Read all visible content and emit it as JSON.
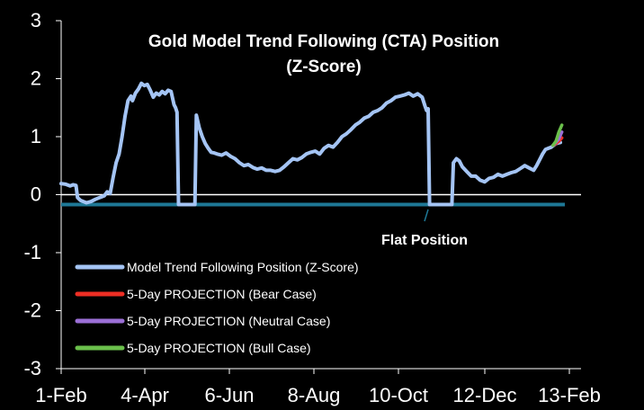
{
  "chart_data": {
    "type": "line",
    "title_lines": [
      "Gold Model Trend Following (CTA) Position",
      "(Z-Score)"
    ],
    "ylim": [
      -3,
      3
    ],
    "y_ticks": [
      3,
      2,
      1,
      0,
      -1,
      -2,
      -3
    ],
    "x_tick_labels": [
      "1-Feb",
      "4-Apr",
      "6-Jun",
      "8-Aug",
      "10-Oct",
      "12-Dec",
      "13-Feb"
    ],
    "x_range_days": [
      0,
      378
    ],
    "zero_line": true,
    "flat_position": {
      "value": -0.17,
      "label": "Flat Position",
      "color": "#1e7896"
    },
    "legend_placement": "bottom-left",
    "series": [
      {
        "name": "Model Trend Following Position (Z-Score)",
        "color": "#a4c4f4",
        "points": [
          [
            0,
            0.19
          ],
          [
            3,
            0.18
          ],
          [
            6,
            0.15
          ],
          [
            8,
            0.17
          ],
          [
            10,
            0.16
          ],
          [
            11,
            -0.05
          ],
          [
            13,
            -0.1
          ],
          [
            15,
            -0.12
          ],
          [
            17,
            -0.14
          ],
          [
            20,
            -0.12
          ],
          [
            23,
            -0.08
          ],
          [
            26,
            -0.05
          ],
          [
            29,
            -0.02
          ],
          [
            31,
            0.05
          ],
          [
            33,
            0.02
          ],
          [
            35,
            0.3
          ],
          [
            37,
            0.55
          ],
          [
            39,
            0.7
          ],
          [
            41,
            1.0
          ],
          [
            43,
            1.35
          ],
          [
            45,
            1.62
          ],
          [
            47,
            1.7
          ],
          [
            48,
            1.62
          ],
          [
            50,
            1.75
          ],
          [
            52,
            1.82
          ],
          [
            54,
            1.92
          ],
          [
            56,
            1.88
          ],
          [
            58,
            1.9
          ],
          [
            60,
            1.8
          ],
          [
            62,
            1.68
          ],
          [
            64,
            1.75
          ],
          [
            66,
            1.72
          ],
          [
            68,
            1.78
          ],
          [
            70,
            1.74
          ],
          [
            72,
            1.8
          ],
          [
            74,
            1.78
          ],
          [
            76,
            1.55
          ],
          [
            77,
            1.5
          ],
          [
            78,
            1.42
          ],
          [
            79,
            -0.17
          ],
          [
            90,
            -0.17
          ],
          [
            91,
            1.37
          ],
          [
            93,
            1.15
          ],
          [
            95,
            1.0
          ],
          [
            97,
            0.88
          ],
          [
            99,
            0.8
          ],
          [
            101,
            0.73
          ],
          [
            103,
            0.72
          ],
          [
            105,
            0.7
          ],
          [
            108,
            0.68
          ],
          [
            111,
            0.72
          ],
          [
            114,
            0.66
          ],
          [
            117,
            0.62
          ],
          [
            120,
            0.55
          ],
          [
            123,
            0.5
          ],
          [
            126,
            0.52
          ],
          [
            129,
            0.47
          ],
          [
            132,
            0.44
          ],
          [
            135,
            0.46
          ],
          [
            138,
            0.42
          ],
          [
            141,
            0.42
          ],
          [
            144,
            0.4
          ],
          [
            147,
            0.42
          ],
          [
            150,
            0.48
          ],
          [
            153,
            0.55
          ],
          [
            156,
            0.62
          ],
          [
            159,
            0.6
          ],
          [
            162,
            0.64
          ],
          [
            165,
            0.7
          ],
          [
            168,
            0.73
          ],
          [
            171,
            0.75
          ],
          [
            174,
            0.7
          ],
          [
            177,
            0.8
          ],
          [
            180,
            0.85
          ],
          [
            183,
            0.82
          ],
          [
            186,
            0.9
          ],
          [
            189,
            1.0
          ],
          [
            192,
            1.05
          ],
          [
            195,
            1.12
          ],
          [
            198,
            1.2
          ],
          [
            201,
            1.25
          ],
          [
            204,
            1.32
          ],
          [
            207,
            1.35
          ],
          [
            210,
            1.42
          ],
          [
            213,
            1.45
          ],
          [
            216,
            1.5
          ],
          [
            219,
            1.58
          ],
          [
            222,
            1.62
          ],
          [
            225,
            1.68
          ],
          [
            228,
            1.7
          ],
          [
            231,
            1.72
          ],
          [
            234,
            1.75
          ],
          [
            237,
            1.7
          ],
          [
            240,
            1.74
          ],
          [
            243,
            1.68
          ],
          [
            245,
            1.52
          ],
          [
            246,
            1.45
          ],
          [
            247,
            1.48
          ],
          [
            248,
            -0.17
          ],
          [
            263,
            -0.17
          ],
          [
            264,
            0.55
          ],
          [
            266,
            0.62
          ],
          [
            268,
            0.58
          ],
          [
            270,
            0.48
          ],
          [
            273,
            0.4
          ],
          [
            276,
            0.32
          ],
          [
            279,
            0.32
          ],
          [
            282,
            0.25
          ],
          [
            285,
            0.22
          ],
          [
            288,
            0.28
          ],
          [
            291,
            0.3
          ],
          [
            294,
            0.35
          ],
          [
            297,
            0.32
          ],
          [
            300,
            0.35
          ],
          [
            303,
            0.38
          ],
          [
            306,
            0.4
          ],
          [
            309,
            0.45
          ],
          [
            312,
            0.5
          ],
          [
            315,
            0.46
          ],
          [
            318,
            0.42
          ],
          [
            320,
            0.5
          ],
          [
            322,
            0.6
          ],
          [
            324,
            0.7
          ],
          [
            326,
            0.78
          ],
          [
            328,
            0.8
          ],
          [
            330,
            0.82
          ],
          [
            333,
            0.88
          ],
          [
            336,
            0.9
          ]
        ]
      },
      {
        "name": "5-Day PROJECTION (Bear Case)",
        "color": "#ee2e24",
        "points": [
          [
            331,
            0.85
          ],
          [
            333,
            0.88
          ],
          [
            335,
            0.92
          ],
          [
            336,
            0.95
          ],
          [
            337,
            0.98
          ]
        ]
      },
      {
        "name": "5-Day PROJECTION (Neutral Case)",
        "color": "#9b6fd6",
        "points": [
          [
            331,
            0.85
          ],
          [
            333,
            0.9
          ],
          [
            335,
            0.96
          ],
          [
            336,
            1.02
          ],
          [
            337,
            1.08
          ]
        ]
      },
      {
        "name": "5-Day PROJECTION (Bull Case)",
        "color": "#6abf4b",
        "points": [
          [
            331,
            0.85
          ],
          [
            333,
            0.92
          ],
          [
            334,
            1.0
          ],
          [
            335,
            1.08
          ],
          [
            336,
            1.14
          ],
          [
            337,
            1.2
          ]
        ]
      }
    ]
  }
}
